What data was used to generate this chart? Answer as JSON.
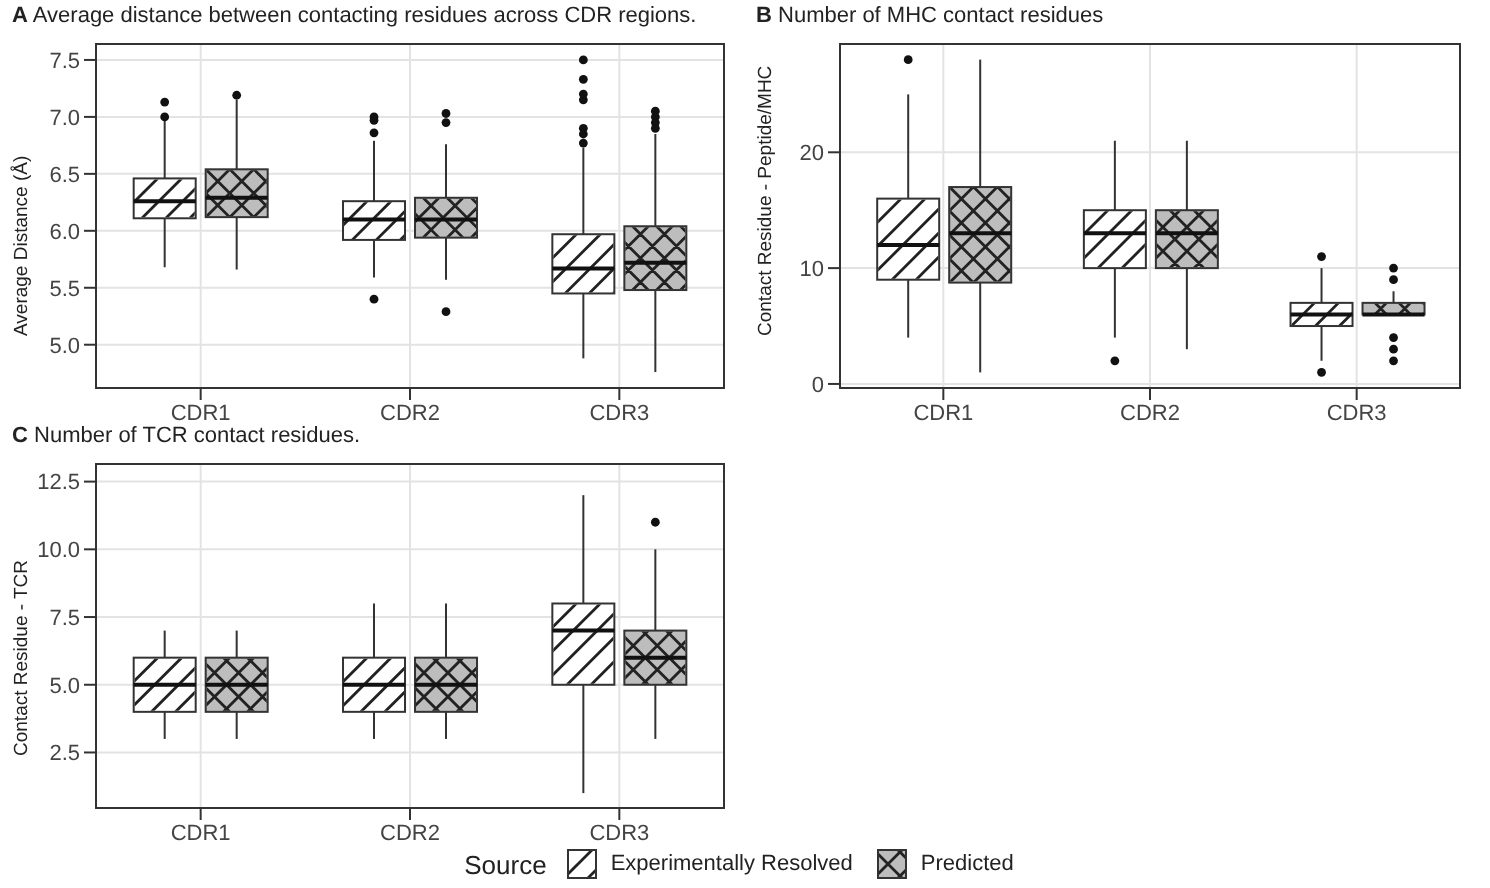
{
  "chart_data": [
    {
      "type": "box",
      "title": "A Average distance between contacting residues across CDR regions.",
      "ylabel": "Average Distance (Å)",
      "categories": [
        "CDR1",
        "CDR2",
        "CDR3"
      ],
      "ylim": [
        4.62,
        7.64
      ],
      "yticks": [
        {
          "value": 5,
          "label": "5.0"
        },
        {
          "value": 5.5,
          "label": "5.5"
        },
        {
          "value": 6,
          "label": "6.0"
        },
        {
          "value": 6.5,
          "label": "6.5"
        },
        {
          "value": 7,
          "label": "7.0"
        },
        {
          "value": 7.5,
          "label": "7.5"
        }
      ],
      "grid": true,
      "series": [
        {
          "color": "#ffffff",
          "boxes": [
            {
              "low": 5.68,
              "q1": 6.11,
              "median": 6.26,
              "q3": 6.46,
              "high": 6.97,
              "outliers": [
                7.0,
                7.13
              ]
            },
            {
              "low": 5.59,
              "q1": 5.92,
              "median": 6.1,
              "q3": 6.26,
              "high": 6.79,
              "outliers": [
                6.86,
                6.97,
                7.0,
                5.4
              ]
            },
            {
              "low": 4.88,
              "q1": 5.45,
              "median": 5.67,
              "q3": 5.97,
              "high": 6.73,
              "outliers": [
                6.77,
                6.85,
                6.9,
                7.15,
                7.2,
                7.33,
                7.5
              ]
            }
          ]
        },
        {
          "color": "#bdbdbd",
          "boxes": [
            {
              "low": 5.66,
              "q1": 6.12,
              "median": 6.29,
              "q3": 6.54,
              "high": 7.15,
              "outliers": [
                7.19
              ]
            },
            {
              "low": 5.57,
              "q1": 5.94,
              "median": 6.1,
              "q3": 6.29,
              "high": 6.76,
              "outliers": [
                6.95,
                7.03,
                5.29
              ]
            },
            {
              "low": 4.76,
              "q1": 5.48,
              "median": 5.72,
              "q3": 6.04,
              "high": 6.85,
              "outliers": [
                6.9,
                6.95,
                7.0,
                7.05
              ]
            }
          ]
        }
      ]
    },
    {
      "type": "box",
      "title": "B Number of MHC contact residues",
      "ylabel": "Contact Residue - Peptide/MHC",
      "categories": [
        "CDR1",
        "CDR2",
        "CDR3"
      ],
      "ylim": [
        -0.35,
        29.35
      ],
      "yticks": [
        0,
        10,
        20
      ],
      "grid": true,
      "series": [
        {
          "color": "#ffffff",
          "boxes": [
            {
              "low": 4,
              "q1": 9,
              "median": 12,
              "q3": 16,
              "high": 25,
              "outliers": [
                28
              ]
            },
            {
              "low": 4,
              "q1": 10,
              "median": 13,
              "q3": 15,
              "high": 21,
              "outliers": [
                2
              ]
            },
            {
              "low": 2,
              "q1": 5,
              "median": 6,
              "q3": 7,
              "high": 10,
              "outliers": [
                11,
                1
              ]
            }
          ]
        },
        {
          "color": "#bdbdbd",
          "boxes": [
            {
              "low": 1,
              "q1": 8.75,
              "median": 13,
              "q3": 17,
              "high": 28
            },
            {
              "low": 3,
              "q1": 10,
              "median": 13,
              "q3": 15,
              "high": 21
            },
            {
              "low": 6,
              "q1": 6,
              "median": 6,
              "q3": 7,
              "high": 8,
              "outliers": [
                9,
                10,
                4,
                3,
                2
              ]
            }
          ]
        }
      ]
    },
    {
      "type": "box",
      "title": "C Number of TCR contact residues.",
      "ylabel": "Contact Residue - TCR",
      "categories": [
        "CDR1",
        "CDR2",
        "CDR3"
      ],
      "ylim": [
        0.45,
        13.15
      ],
      "yticks": [
        {
          "value": 2.5,
          "label": "2.5"
        },
        {
          "value": 5,
          "label": "5.0"
        },
        {
          "value": 7.5,
          "label": "7.5"
        },
        {
          "value": 10,
          "label": "10.0"
        },
        {
          "value": 12.5,
          "label": "12.5"
        }
      ],
      "grid": true,
      "legend": "bottom",
      "legend_title": "Source",
      "series": [
        {
          "name": "Experimentally Resolved",
          "color": "#ffffff",
          "boxes": [
            {
              "low": 3,
              "q1": 4,
              "median": 5,
              "q3": 6,
              "high": 7
            },
            {
              "low": 3,
              "q1": 4,
              "median": 5,
              "q3": 6,
              "high": 8
            },
            {
              "low": 1,
              "q1": 5,
              "median": 7,
              "q3": 8,
              "high": 12
            }
          ]
        },
        {
          "name": "Predicted",
          "color": "#bdbdbd",
          "boxes": [
            {
              "low": 3,
              "q1": 4,
              "median": 5,
              "q3": 6,
              "high": 7
            },
            {
              "low": 3,
              "q1": 4,
              "median": 5,
              "q3": 6,
              "high": 8
            },
            {
              "low": 3,
              "q1": 5,
              "median": 6,
              "q3": 7,
              "high": 10,
              "outliers": [
                11
              ]
            }
          ]
        }
      ]
    }
  ]
}
